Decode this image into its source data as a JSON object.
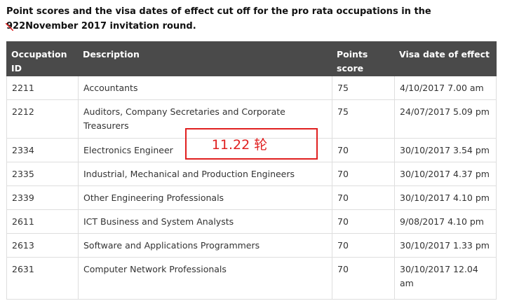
{
  "caption": {
    "before": "Point scores and the visa dates of effect cut off for the pro rata occupations in the ",
    "struck": "9",
    "after": "22November 2017 invitation round."
  },
  "table": {
    "headers": [
      "Occupation ID",
      "Description",
      "Points score",
      "Visa date of effect"
    ],
    "rows": [
      [
        "2211",
        "Accountants",
        "75",
        "4/10/2017 7.00 am"
      ],
      [
        "2212",
        "Auditors, Company Secretaries and Corporate Treasurers",
        "75",
        "24/07/2017 5.09 pm"
      ],
      [
        "2334",
        "Electronics Engineer",
        "70",
        "30/10/2017 3.54 pm"
      ],
      [
        "2335",
        "Industrial, Mechanical and Production Engineers",
        "70",
        "30/10/2017 4.37 pm"
      ],
      [
        "2339",
        "Other Engineering Professionals",
        "70",
        "30/10/2017 4.10 pm"
      ],
      [
        "2611",
        "ICT Business and System Analysts",
        "70",
        "9/08/2017 4.10 pm"
      ],
      [
        "2613",
        "Software and Applications Programmers",
        "70",
        "30/10/2017 1.33 pm"
      ],
      [
        "2631",
        "Computer Network Professionals",
        "70",
        "30/10/2017 12.04 am"
      ]
    ]
  },
  "annotation": {
    "text": "11.22 轮",
    "color": "#e02020"
  }
}
